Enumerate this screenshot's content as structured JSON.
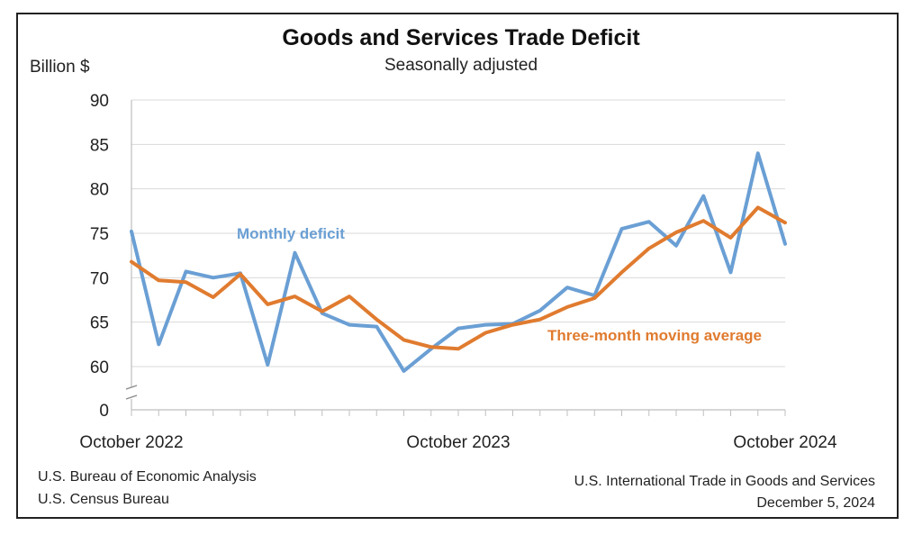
{
  "header": {
    "title": "Goods and Services Trade Deficit",
    "subtitle": "Seasonally adjusted",
    "y_unit": "Billion $"
  },
  "footer": {
    "left_line1": "U.S. Bureau of Economic Analysis",
    "left_line2": "U.S. Census Bureau",
    "right_line1": "U.S. International Trade in Goods and Services",
    "right_line2": "December 5, 2024"
  },
  "chart_data": {
    "type": "line",
    "title": "Goods and Services Trade Deficit",
    "subtitle": "Seasonally adjusted",
    "ylabel": "Billion $",
    "xlabel": "",
    "ylim": [
      0,
      90
    ],
    "y_axis_break": "between 0 and 60",
    "yticks": [
      "90",
      "85",
      "80",
      "75",
      "70",
      "65",
      "60",
      "0"
    ],
    "x_tick_labels": [
      "October 2022",
      "October 2023",
      "October 2024"
    ],
    "x": [
      "2022-10",
      "2022-11",
      "2022-12",
      "2023-01",
      "2023-02",
      "2023-03",
      "2023-04",
      "2023-05",
      "2023-06",
      "2023-07",
      "2023-08",
      "2023-09",
      "2023-10",
      "2023-11",
      "2023-12",
      "2024-01",
      "2024-02",
      "2024-03",
      "2024-04",
      "2024-05",
      "2024-06",
      "2024-07",
      "2024-08",
      "2024-09",
      "2024-10"
    ],
    "series": [
      {
        "name": "Monthly deficit",
        "color": "#6a9fd4",
        "values": [
          75.2,
          62.5,
          70.7,
          70.0,
          70.5,
          60.2,
          72.8,
          66.0,
          64.7,
          64.5,
          59.5,
          62.0,
          64.3,
          64.7,
          64.8,
          66.3,
          68.9,
          68.0,
          75.5,
          76.3,
          73.6,
          79.2,
          70.6,
          84.0,
          73.8
        ]
      },
      {
        "name": "Three-month moving average",
        "color": "#e07b2f",
        "values": [
          71.8,
          69.7,
          69.5,
          67.8,
          70.4,
          67.0,
          67.9,
          66.2,
          67.9,
          65.3,
          63.0,
          62.2,
          62.0,
          63.8,
          64.7,
          65.3,
          66.7,
          67.7,
          70.6,
          73.3,
          75.1,
          76.4,
          74.5,
          77.9,
          76.2
        ]
      }
    ],
    "grid": "horizontal",
    "legend": "inline labels"
  }
}
